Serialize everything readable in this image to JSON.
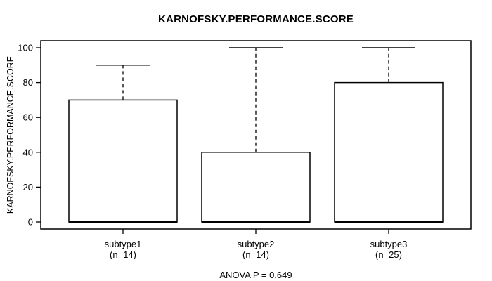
{
  "chart_data": {
    "type": "box",
    "title": "KARNOFSKY.PERFORMANCE.SCORE",
    "ylabel": "KARNOFSKY.PERFORMANCE.SCORE",
    "xlabel": "",
    "ylim": [
      0,
      100
    ],
    "yticks": [
      0,
      20,
      40,
      60,
      80,
      100
    ],
    "grid": false,
    "legend": null,
    "annotation": "ANOVA P = 0.649",
    "groups": [
      {
        "label": "subtype1",
        "sublabel": "(n=14)",
        "min": 0,
        "q1": 0,
        "median": 0,
        "q3": 70,
        "max": 90
      },
      {
        "label": "subtype2",
        "sublabel": "(n=14)",
        "min": 0,
        "q1": 0,
        "median": 0,
        "q3": 40,
        "max": 100
      },
      {
        "label": "subtype3",
        "sublabel": "(n=25)",
        "min": 0,
        "q1": 0,
        "median": 0,
        "q3": 80,
        "max": 100
      }
    ],
    "colors": {
      "stroke": "#000000",
      "box_fill": "#ffffff",
      "background": "#ffffff"
    }
  }
}
